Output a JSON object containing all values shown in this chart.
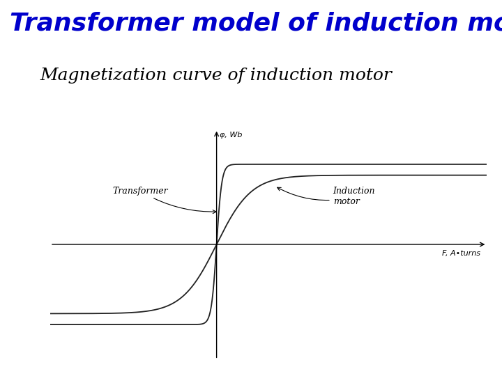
{
  "title": "Transformer model of induction motor",
  "subtitle": "Magnetization curve of induction motor",
  "title_color": "#0000CC",
  "title_fontsize": 26,
  "subtitle_fontsize": 18,
  "background_color": "#ffffff",
  "ylabel": "φ, Wb",
  "xlabel": "F, A•turns",
  "curve_color": "#222222",
  "label_transformer": "Transformer",
  "label_induction": "Induction\nmotor",
  "label_fontsize": 9
}
